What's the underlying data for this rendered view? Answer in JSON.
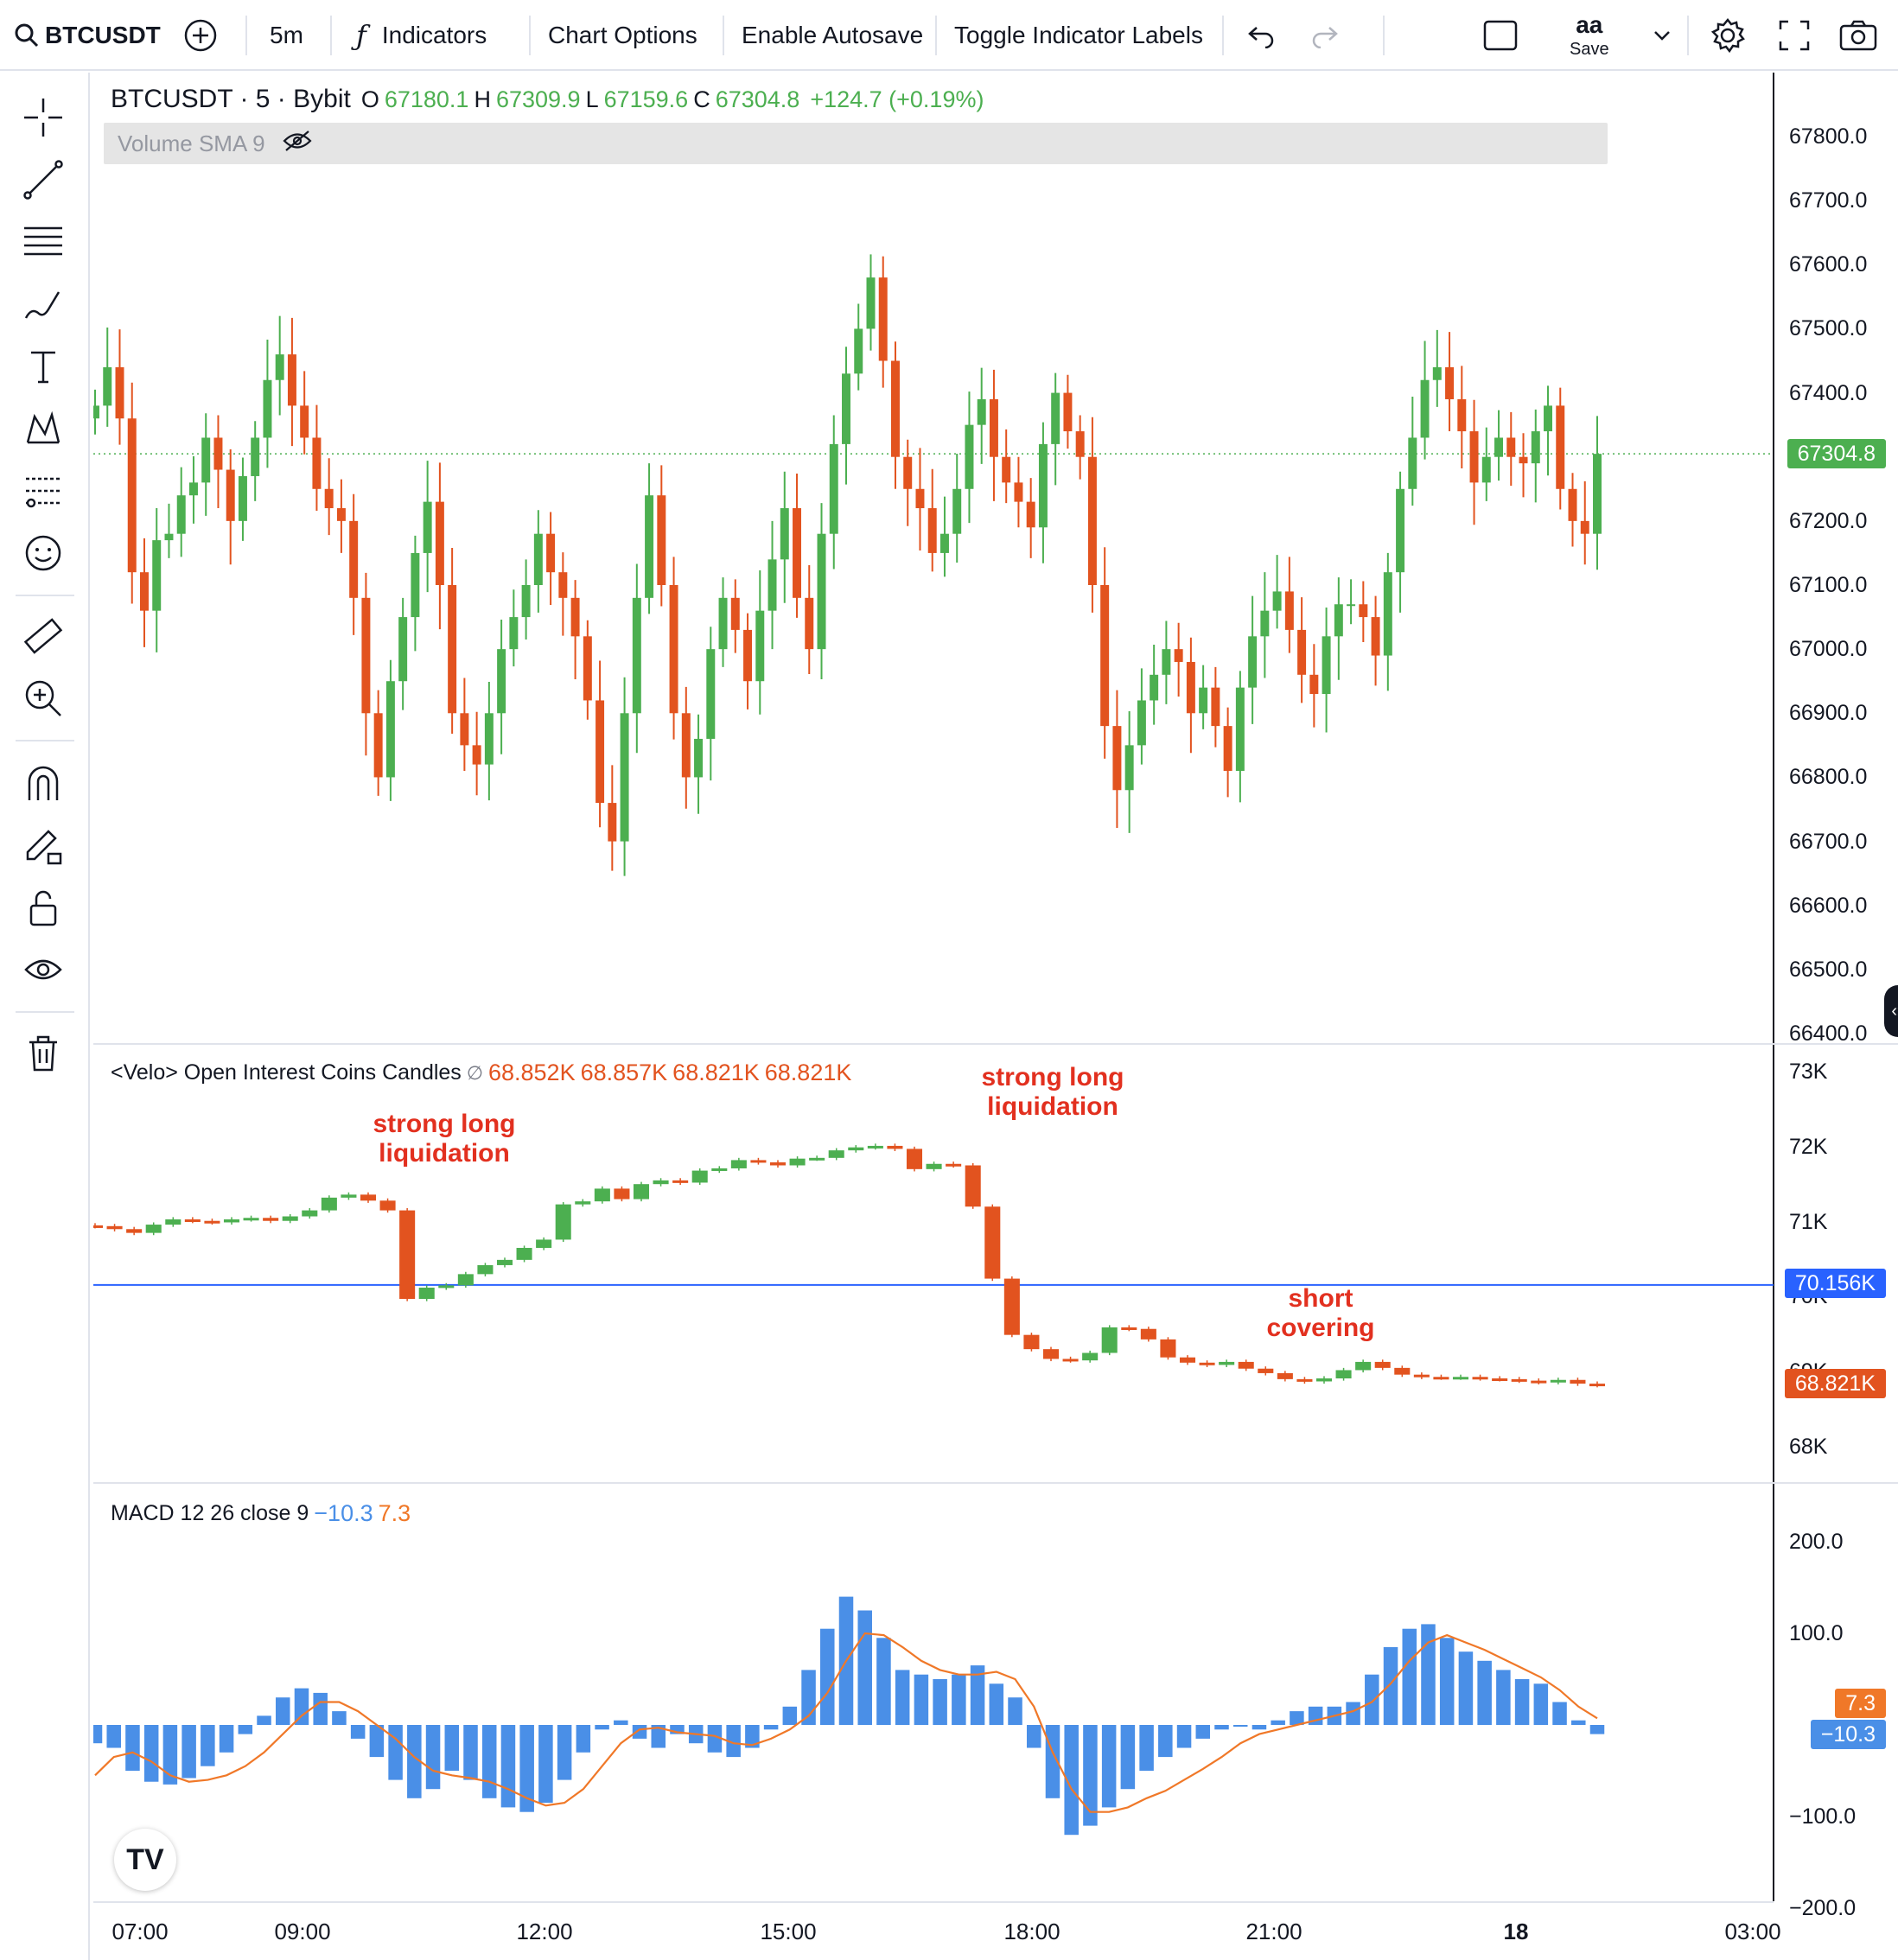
{
  "toolbar": {
    "symbol": "BTCUSDT",
    "interval": "5m",
    "indicators_label": "Indicators",
    "chart_options_label": "Chart Options",
    "autosave_label": "Enable Autosave",
    "toggle_labels_label": "Toggle Indicator Labels",
    "layout_name": "aa",
    "save_label": "Save"
  },
  "sidebar": {
    "tools": [
      "crosshair-icon",
      "trend-line-icon",
      "fib-retracement-icon",
      "brush-icon",
      "text-icon",
      "pattern-icon",
      "prediction-icon",
      "emoji-icon",
      "ruler-icon",
      "zoom-in-icon",
      "magnet-icon",
      "lock-drawing-icon",
      "unlock-icon",
      "eye-icon",
      "trash-icon"
    ]
  },
  "main_legend": {
    "title": "BTCUSDT · 5 · Bybit",
    "o_label": "O",
    "o": "67180.1",
    "h_label": "H",
    "h": "67309.9",
    "l_label": "L",
    "l": "67159.6",
    "c_label": "C",
    "c": "67304.8",
    "change": "+124.7 (+0.19%)"
  },
  "volume_legend": {
    "label": "Volume SMA 9"
  },
  "oi_legend": {
    "title": "<Velo> Open Interest Coins Candles",
    "symbol": "∅",
    "v1": "68.852K",
    "v2": "68.857K",
    "v3": "68.821K",
    "v4": "68.821K"
  },
  "macd_legend": {
    "title": "MACD 12 26 close 9",
    "macd": "−10.3",
    "signal": "7.3"
  },
  "annotations": [
    {
      "text_line1": "strong long",
      "text_line2": "liquidation"
    },
    {
      "text_line1": "strong long",
      "text_line2": "liquidation"
    },
    {
      "text_line1": "short",
      "text_line2": "covering"
    }
  ],
  "price_axis": [
    "67800.0",
    "67700.0",
    "67600.0",
    "67500.0",
    "67400.0",
    "67200.0",
    "67100.0",
    "67000.0",
    "66900.0",
    "66800.0",
    "66700.0",
    "66600.0",
    "66500.0",
    "66400.0"
  ],
  "oi_axis": [
    "73K",
    "72K",
    "71K",
    "70K",
    "69K",
    "68K"
  ],
  "macd_axis": [
    "200.0",
    "100.0",
    "−100.0",
    "−200.0"
  ],
  "tags": {
    "last_price": "67304.8",
    "oi_line": "70.156K",
    "oi_last": "68.821K",
    "macd_signal": "7.3",
    "macd_value": "−10.3"
  },
  "time_axis": [
    "07:00",
    "09:00",
    "12:00",
    "15:00",
    "18:00",
    "21:00",
    "18",
    "03:00"
  ],
  "colors": {
    "up": "#4caf50",
    "down": "#e2531f",
    "macd_hist": "#4a8fe7",
    "signal": "#f07828",
    "oi_line": "#2962ff",
    "annotation": "#e2301f"
  },
  "chart_data": [
    {
      "type": "candlestick",
      "title": "BTCUSDT · 5 · Bybit",
      "ylim": [
        66400,
        67850
      ],
      "x_ticks": [
        "07:00",
        "09:00",
        "12:00",
        "15:00",
        "18:00",
        "21:00",
        "18",
        "03:00"
      ],
      "close_series_approx": [
        67380,
        67440,
        67360,
        67120,
        67060,
        67170,
        67180,
        67240,
        67260,
        67330,
        67280,
        67200,
        67270,
        67330,
        67420,
        67460,
        67380,
        67330,
        67250,
        67220,
        67200,
        67080,
        66900,
        66800,
        66950,
        67050,
        67150,
        67230,
        67100,
        66900,
        66850,
        66820,
        66900,
        67000,
        67050,
        67100,
        67180,
        67120,
        67080,
        67020,
        66920,
        66760,
        66700,
        66900,
        67080,
        67240,
        67100,
        66900,
        66800,
        66860,
        67000,
        67080,
        67030,
        66950,
        67060,
        67140,
        67220,
        67080,
        67000,
        67180,
        67320,
        67430,
        67500,
        67580,
        67450,
        67300,
        67250,
        67220,
        67150,
        67180,
        67250,
        67350,
        67390,
        67300,
        67260,
        67230,
        67190,
        67320,
        67400,
        67340,
        67300,
        67100,
        66880,
        66780,
        66850,
        66920,
        66960,
        67000,
        66980,
        66900,
        66940,
        66880,
        66810,
        66940,
        67020,
        67060,
        67090,
        67030,
        66960,
        66930,
        67020,
        67070,
        67070,
        67050,
        66990,
        67120,
        67250,
        67330,
        67420,
        67440,
        67390,
        67340,
        67260,
        67300,
        67330,
        67300,
        67290,
        67340,
        67380,
        67250,
        67200,
        67180,
        67304.8
      ]
    },
    {
      "type": "candlestick",
      "title": "<Velo> Open Interest Coins Candles",
      "ylim": [
        67700,
        73300
      ],
      "reference_line": 70156,
      "last": 68821,
      "close_series_approx": [
        70940,
        70900,
        70850,
        70960,
        71030,
        71010,
        70990,
        71030,
        71050,
        71010,
        71070,
        71150,
        71320,
        71360,
        71280,
        71150,
        69970,
        70120,
        70150,
        70300,
        70420,
        70490,
        70650,
        70760,
        71230,
        71270,
        71440,
        71300,
        71500,
        71550,
        71520,
        71680,
        71710,
        71820,
        71790,
        71750,
        71840,
        71850,
        71950,
        71990,
        72010,
        71970,
        71700,
        71770,
        71750,
        71200,
        70240,
        69490,
        69300,
        69170,
        69150,
        69250,
        69590,
        69570,
        69430,
        69190,
        69120,
        69090,
        69130,
        69040,
        68980,
        68900,
        68870,
        68910,
        69020,
        69130,
        69050,
        68960,
        68930,
        68920,
        68930,
        68910,
        68900,
        68880,
        68860,
        68890,
        68840,
        68821
      ]
    },
    {
      "type": "bar",
      "title": "MACD 12 26 close 9",
      "ylim": [
        -200,
        230
      ],
      "macd_hist_approx": [
        -20,
        -25,
        -50,
        -62,
        -65,
        -58,
        -45,
        -30,
        -10,
        10,
        30,
        40,
        35,
        15,
        -15,
        -35,
        -60,
        -80,
        -70,
        -50,
        -60,
        -80,
        -90,
        -95,
        -85,
        -60,
        -30,
        -5,
        5,
        -15,
        -25,
        -10,
        -20,
        -30,
        -35,
        -25,
        -5,
        20,
        60,
        105,
        140,
        125,
        95,
        60,
        55,
        50,
        55,
        65,
        45,
        30,
        -25,
        -80,
        -120,
        -110,
        -90,
        -70,
        -50,
        -35,
        -25,
        -15,
        -5,
        0,
        -5,
        5,
        15,
        20,
        20,
        25,
        55,
        85,
        105,
        110,
        95,
        80,
        70,
        60,
        50,
        45,
        25,
        5,
        -10
      ],
      "signal_approx": [
        -55,
        -35,
        -30,
        -40,
        -55,
        -62,
        -60,
        -55,
        -45,
        -30,
        -10,
        10,
        25,
        25,
        15,
        0,
        -15,
        -35,
        -50,
        -55,
        -58,
        -62,
        -70,
        -80,
        -88,
        -85,
        -70,
        -45,
        -20,
        -5,
        -3,
        -8,
        -10,
        -12,
        -20,
        -22,
        -15,
        -5,
        10,
        35,
        70,
        100,
        98,
        85,
        70,
        60,
        55,
        55,
        58,
        50,
        20,
        -30,
        -70,
        -95,
        -95,
        -90,
        -80,
        -72,
        -60,
        -48,
        -35,
        -20,
        -10,
        -5,
        0,
        5,
        10,
        15,
        25,
        45,
        70,
        90,
        98,
        90,
        82,
        72,
        62,
        52,
        38,
        20,
        7.3
      ]
    }
  ]
}
